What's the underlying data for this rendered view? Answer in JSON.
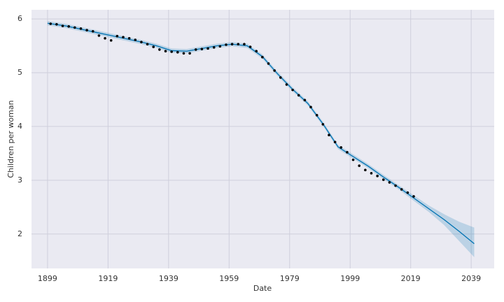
{
  "chart_data": {
    "type": "forecast",
    "xlabel": "Date",
    "ylabel": "Children per woman",
    "xlim": [
      1893.7,
      2046.6
    ],
    "ylim": [
      1.36,
      6.17
    ],
    "xticks": [
      1899,
      1919,
      1939,
      1959,
      1979,
      1999,
      2019,
      2039
    ],
    "yticks": [
      2,
      3,
      4,
      5,
      6
    ],
    "grid": true,
    "points": {
      "color": "#000000",
      "x": [
        1900,
        1902,
        1904,
        1906,
        1908,
        1910,
        1912,
        1914,
        1916,
        1918,
        1920,
        1922,
        1924,
        1926,
        1928,
        1930,
        1932,
        1934,
        1936,
        1938,
        1940,
        1942,
        1944,
        1946,
        1948,
        1950,
        1952,
        1954,
        1956,
        1958,
        1960,
        1962,
        1964,
        1966,
        1968,
        1970,
        1972,
        1974,
        1976,
        1978,
        1980,
        1982,
        1984,
        1986,
        1988,
        1990,
        1992,
        1994,
        1996,
        1998,
        2000,
        2002,
        2004,
        2006,
        2008,
        2010,
        2012,
        2014,
        2016,
        2018,
        2020
      ],
      "values": [
        5.91,
        5.9,
        5.87,
        5.86,
        5.84,
        5.82,
        5.79,
        5.77,
        5.69,
        5.64,
        5.6,
        5.68,
        5.66,
        5.64,
        5.61,
        5.57,
        5.53,
        5.48,
        5.43,
        5.4,
        5.39,
        5.38,
        5.36,
        5.36,
        5.43,
        5.44,
        5.45,
        5.47,
        5.49,
        5.52,
        5.53,
        5.53,
        5.53,
        5.48,
        5.4,
        5.29,
        5.17,
        5.04,
        4.91,
        4.78,
        4.68,
        4.58,
        4.49,
        4.36,
        4.21,
        4.04,
        3.84,
        3.71,
        3.61,
        3.52,
        3.38,
        3.27,
        3.19,
        3.13,
        3.08,
        3.01,
        2.96,
        2.9,
        2.83,
        2.77,
        2.7
      ]
    },
    "forecast": {
      "color": "#0072b2",
      "x": [
        1899,
        1905,
        1910,
        1915,
        1920,
        1925,
        1930,
        1935,
        1940,
        1945,
        1950,
        1955,
        1960,
        1965,
        1970,
        1975,
        1980,
        1985,
        1990,
        1995,
        2000,
        2005,
        2010,
        2015,
        2020,
        2025,
        2030,
        2035,
        2040
      ],
      "values": [
        5.92,
        5.87,
        5.81,
        5.75,
        5.69,
        5.63,
        5.57,
        5.5,
        5.41,
        5.4,
        5.45,
        5.5,
        5.53,
        5.5,
        5.3,
        4.98,
        4.69,
        4.43,
        4.05,
        3.62,
        3.44,
        3.26,
        3.06,
        2.87,
        2.67,
        2.47,
        2.27,
        2.05,
        1.82
      ],
      "lower": [
        5.88,
        5.83,
        5.77,
        5.71,
        5.65,
        5.59,
        5.53,
        5.46,
        5.37,
        5.36,
        5.41,
        5.46,
        5.49,
        5.46,
        5.26,
        4.94,
        4.65,
        4.39,
        4.01,
        3.58,
        3.4,
        3.22,
        3.02,
        2.83,
        2.62,
        2.41,
        2.17,
        1.87,
        1.57
      ],
      "upper": [
        5.96,
        5.91,
        5.85,
        5.79,
        5.73,
        5.67,
        5.61,
        5.54,
        5.45,
        5.44,
        5.49,
        5.54,
        5.57,
        5.54,
        5.34,
        5.02,
        4.73,
        4.47,
        4.09,
        3.66,
        3.48,
        3.3,
        3.1,
        2.91,
        2.72,
        2.53,
        2.37,
        2.23,
        2.12
      ]
    }
  }
}
